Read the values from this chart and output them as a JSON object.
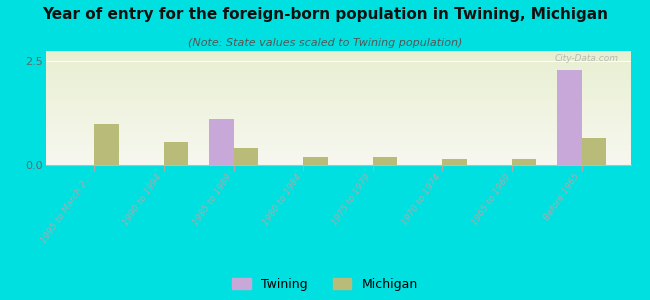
{
  "title": "Year of entry for the foreign-born population in Twining, Michigan",
  "subtitle": "(Note: State values scaled to Twining population)",
  "categories": [
    "1995 to March 2...",
    "1990 to 1994",
    "1985 to 1989",
    "1980 to 1984",
    "1975 to 1979",
    "1970 to 1974",
    "1965 to 1969",
    "Before 1965"
  ],
  "twining_values": [
    0,
    0,
    1.1,
    0,
    0,
    0,
    0,
    2.3
  ],
  "michigan_values": [
    1.0,
    0.55,
    0.4,
    0.2,
    0.2,
    0.15,
    0.15,
    0.65
  ],
  "twining_color": "#c8a8d8",
  "michigan_color": "#b8bc78",
  "background_color": "#00e0e0",
  "plot_bg_color": "#eef2e0",
  "ylim": [
    0,
    2.75
  ],
  "yticks": [
    0,
    2.5
  ],
  "watermark": "City-Data.com",
  "bar_width": 0.35,
  "title_fontsize": 11,
  "subtitle_fontsize": 8
}
